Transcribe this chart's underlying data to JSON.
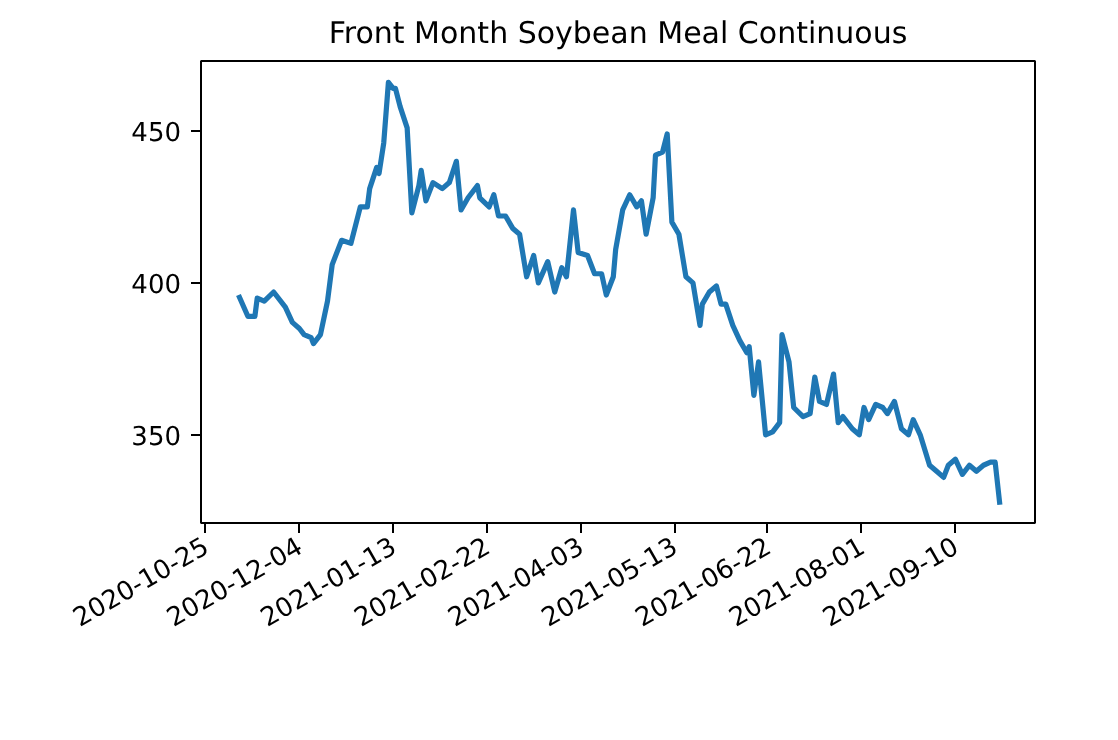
{
  "chart_data": {
    "type": "line",
    "title": "Front Month Soybean Meal Continuous",
    "x": [
      "2020-11-08",
      "2020-11-12",
      "2020-11-15",
      "2020-11-16",
      "2020-11-19",
      "2020-11-23",
      "2020-11-28",
      "2020-12-01",
      "2020-12-04",
      "2020-12-06",
      "2020-12-09",
      "2020-12-10",
      "2020-12-13",
      "2020-12-16",
      "2020-12-18",
      "2020-12-22",
      "2020-12-26",
      "2020-12-30",
      "2021-01-02",
      "2021-01-03",
      "2021-01-06",
      "2021-01-07",
      "2021-01-09",
      "2021-01-11",
      "2021-01-13",
      "2021-01-14",
      "2021-01-16",
      "2021-01-19",
      "2021-01-21",
      "2021-01-24",
      "2021-01-25",
      "2021-01-27",
      "2021-01-30",
      "2021-02-03",
      "2021-02-06",
      "2021-02-09",
      "2021-02-11",
      "2021-02-14",
      "2021-02-18",
      "2021-02-19",
      "2021-02-23",
      "2021-02-25",
      "2021-02-27",
      "2021-03-02",
      "2021-03-05",
      "2021-03-08",
      "2021-03-11",
      "2021-03-14",
      "2021-03-16",
      "2021-03-20",
      "2021-03-23",
      "2021-03-26",
      "2021-03-28",
      "2021-03-31",
      "2021-04-02",
      "2021-04-06",
      "2021-04-09",
      "2021-04-12",
      "2021-04-14",
      "2021-04-17",
      "2021-04-18",
      "2021-04-21",
      "2021-04-24",
      "2021-04-27",
      "2021-04-29",
      "2021-05-01",
      "2021-05-04",
      "2021-05-05",
      "2021-05-08",
      "2021-05-10",
      "2021-05-12",
      "2021-05-15",
      "2021-05-18",
      "2021-05-21",
      "2021-05-24",
      "2021-05-25",
      "2021-05-28",
      "2021-05-31",
      "2021-06-02",
      "2021-06-04",
      "2021-06-07",
      "2021-06-10",
      "2021-06-13",
      "2021-06-14",
      "2021-06-16",
      "2021-06-18",
      "2021-06-21",
      "2021-06-24",
      "2021-06-27",
      "2021-06-28",
      "2021-07-01",
      "2021-07-03",
      "2021-07-07",
      "2021-07-10",
      "2021-07-12",
      "2021-07-14",
      "2021-07-17",
      "2021-07-20",
      "2021-07-22",
      "2021-07-24",
      "2021-07-28",
      "2021-07-31",
      "2021-08-02",
      "2021-08-04",
      "2021-08-07",
      "2021-08-10",
      "2021-08-12",
      "2021-08-15",
      "2021-08-18",
      "2021-08-21",
      "2021-08-23",
      "2021-08-26",
      "2021-08-30",
      "2021-09-02",
      "2021-09-05",
      "2021-09-07",
      "2021-09-10",
      "2021-09-13",
      "2021-09-16",
      "2021-09-19",
      "2021-09-22",
      "2021-09-25",
      "2021-09-27",
      "2021-09-29"
    ],
    "series": [
      {
        "color": "#1f77b4",
        "values": [
          396,
          389,
          389,
          395,
          394,
          397,
          392,
          387,
          385,
          383,
          382,
          380,
          383,
          394,
          406,
          414,
          413,
          425,
          425,
          431,
          438,
          436,
          446,
          466,
          464,
          464,
          458,
          451,
          423,
          432,
          437,
          427,
          433,
          431,
          433,
          440,
          424,
          428,
          432,
          428,
          425,
          429,
          422,
          422,
          418,
          416,
          402,
          409,
          400,
          407,
          397,
          405,
          402,
          424,
          410,
          409,
          403,
          403,
          396,
          402,
          411,
          424,
          429,
          425,
          427,
          416,
          428,
          442,
          443,
          449,
          420,
          416,
          402,
          400,
          386,
          393,
          397,
          399,
          393,
          393,
          386,
          381,
          377,
          379,
          363,
          374,
          350,
          351,
          354,
          383,
          374,
          359,
          356,
          357,
          369,
          361,
          360,
          370,
          354,
          356,
          352,
          350,
          359,
          355,
          360,
          359,
          357,
          361,
          352,
          350,
          355,
          350,
          340,
          338,
          336,
          340,
          342,
          337,
          340,
          338,
          340,
          341,
          341,
          327
        ]
      }
    ],
    "xlim": [
      "2020-10-23",
      "2021-10-14"
    ],
    "xticks": [
      {
        "value": "2020-10-25",
        "label": "2020-10-25"
      },
      {
        "value": "2020-12-04",
        "label": "2020-12-04"
      },
      {
        "value": "2021-01-13",
        "label": "2021-01-13"
      },
      {
        "value": "2021-02-22",
        "label": "2021-02-22"
      },
      {
        "value": "2021-04-03",
        "label": "2021-04-03"
      },
      {
        "value": "2021-05-13",
        "label": "2021-05-13"
      },
      {
        "value": "2021-06-22",
        "label": "2021-06-22"
      },
      {
        "value": "2021-08-01",
        "label": "2021-08-01"
      },
      {
        "value": "2021-09-10",
        "label": "2021-09-10"
      }
    ],
    "ylim": [
      321,
      473
    ],
    "yticks": [
      350,
      400,
      450
    ],
    "grid": false,
    "marker": "none",
    "line_style": "solid"
  }
}
